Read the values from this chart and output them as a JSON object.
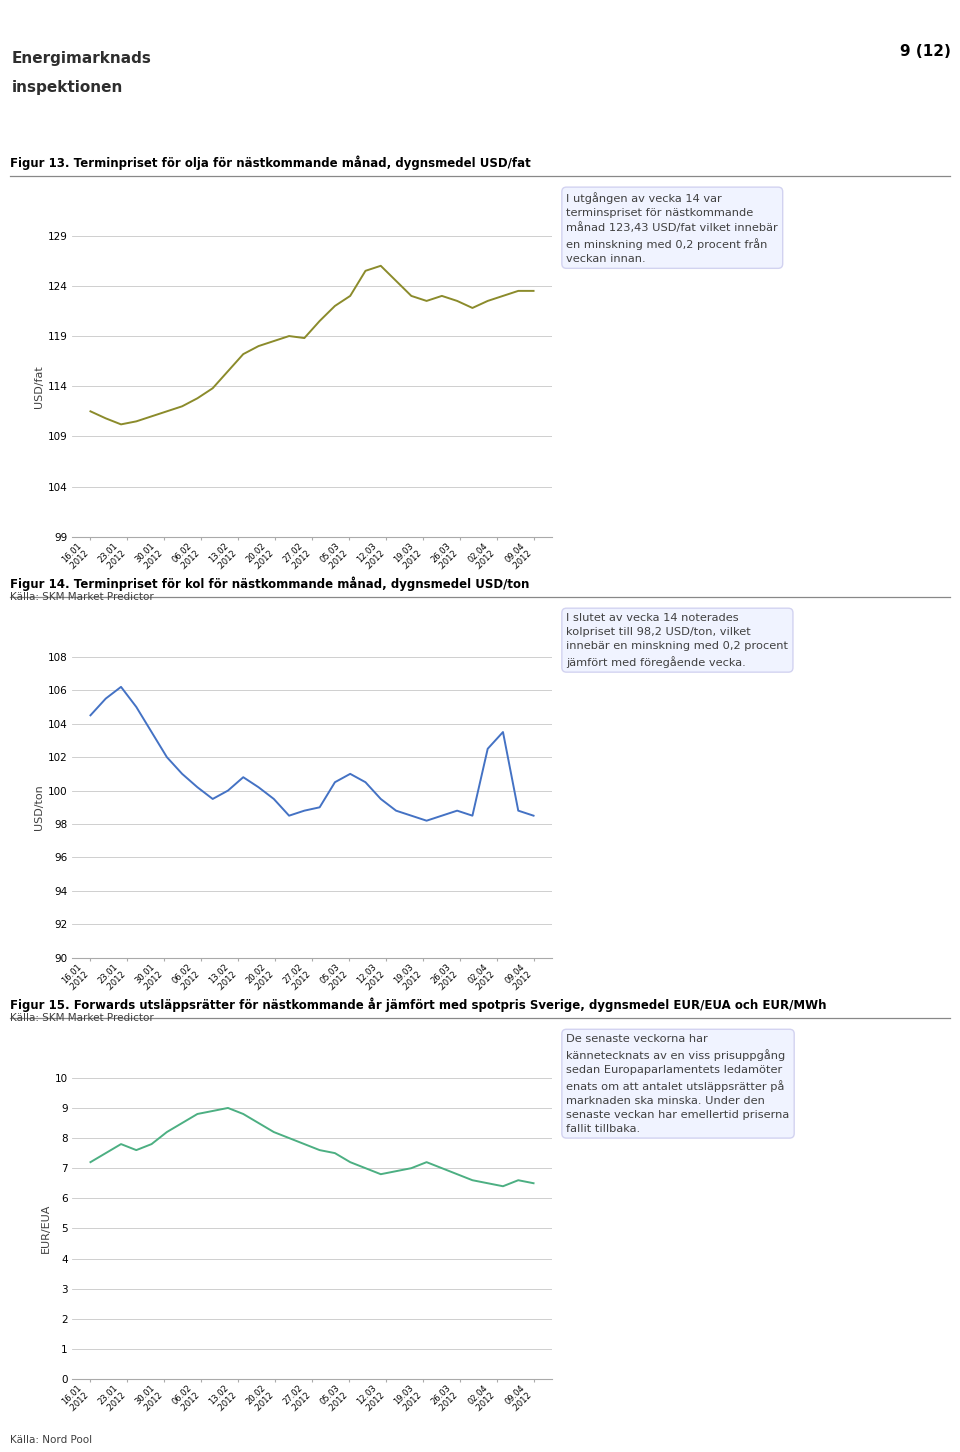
{
  "page_num": "9 (12)",
  "fig13_title": "Figur 13. Terminpriset för olja för nästkommande månad, dygnsmedel USD/fat",
  "fig14_title": "Figur 14. Terminpriset för kol för nästkommande månad, dygnsmedel USD/ton",
  "fig15_title": "Figur 15. Forwards utsläppsrätter för nästkommande år jämfört med spotpris Sverige, dygnsmedel EUR/EUA och EUR/MWh",
  "fig13_ylabel": "USD/fat",
  "fig14_ylabel": "USD/ton",
  "fig15_ylabel": "EUR/EUA",
  "source13": "Källa: SKM Market Predictor",
  "source14": "Källa: SKM Market Predictor",
  "source15": "Källa: Nord Pool",
  "fig13_yticks": [
    99,
    104,
    109,
    114,
    119,
    124,
    129
  ],
  "fig14_yticks": [
    90,
    92,
    94,
    96,
    98,
    100,
    102,
    104,
    106,
    108
  ],
  "fig15_yticks": [
    0,
    1,
    2,
    3,
    4,
    5,
    6,
    7,
    8,
    9,
    10
  ],
  "x_dates": [
    "16.01.2012",
    "23.01.2012",
    "30.01.2012",
    "06.02.2012",
    "13.02.2012",
    "20.02.2012",
    "27.02.2012",
    "05.03.2012",
    "12.03.2012",
    "19.03.2012",
    "26.03.2012",
    "02.04.2012",
    "09.04.2012"
  ],
  "oil_data": [
    111.5,
    110.8,
    110.2,
    110.5,
    111.0,
    111.5,
    112.0,
    112.8,
    113.8,
    115.5,
    117.2,
    118.0,
    118.5,
    119.0,
    118.8,
    120.5,
    122.0,
    123.0,
    125.5,
    126.0,
    124.5,
    123.0,
    122.5,
    123.0,
    122.5,
    121.8,
    122.5,
    123.0,
    123.5,
    123.5
  ],
  "coal_data": [
    104.5,
    105.5,
    106.2,
    105.0,
    103.5,
    102.0,
    101.0,
    100.2,
    99.5,
    100.0,
    100.8,
    100.2,
    99.5,
    98.5,
    98.8,
    99.0,
    100.5,
    101.0,
    100.5,
    99.5,
    98.8,
    98.5,
    98.2,
    98.5,
    98.8,
    98.5,
    102.5,
    103.5,
    98.8,
    98.5
  ],
  "eur_data": [
    7.2,
    7.5,
    7.8,
    7.6,
    7.8,
    8.2,
    8.5,
    8.8,
    8.9,
    9.0,
    8.8,
    8.5,
    8.2,
    8.0,
    7.8,
    7.6,
    7.5,
    7.2,
    7.0,
    6.8,
    6.9,
    7.0,
    7.2,
    7.0,
    6.8,
    6.6,
    6.5,
    6.4,
    6.6,
    6.5
  ],
  "fig13_color": "#8B8B2B",
  "fig14_color": "#4472C4",
  "fig15_color": "#4CAF82",
  "text13": "I utgången av vecka 14 var\nterminspriset för nästkommande\nmånad 123,43 USD/fat vilket innebär\nen minskning med 0,2 procent från\nveckan innan.",
  "text14": "I slutet av vecka 14 noterades\nkolpriset till 98,2 USD/ton, vilket\ninnebär en minskning med 0,2 procent\njämfört med föregående vecka.",
  "text15": "De senaste veckorna har\nkännetecknats av en viss prisuppgång\nsedan Europaparlamentets ledamöter\nenats om att antalet utsläppsrätter på\nmarknaden ska minska. Under den\nsenaste veckan har emellertid priserna\nfallit tillbaka.",
  "logo_text1": "Energimarknads",
  "logo_text2": "inspektionen",
  "bg_color": "#FFFFFF",
  "grid_color": "#C8C8C8",
  "title_color": "#000000",
  "text_color": "#404040"
}
